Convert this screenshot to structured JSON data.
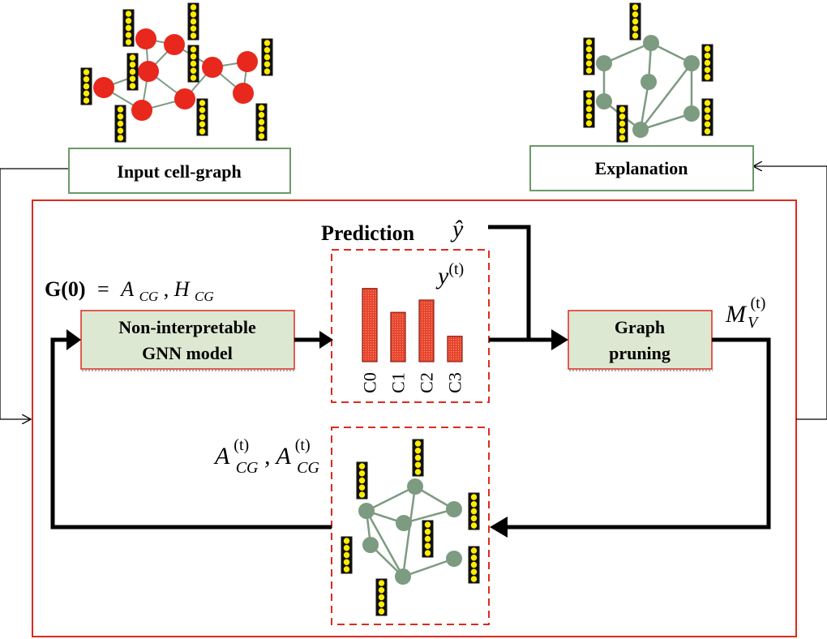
{
  "colors": {
    "frame_border": "#dc2b1e",
    "box_border": "#6a9a68",
    "box_fill": "#dde8d2",
    "node_red": "#e8271d",
    "node_green": "#7c9b80",
    "edge_green": "#7c9b80",
    "bar_fill": "#e8452c",
    "feature_cell": "#ffec00",
    "arrow": "#000000"
  },
  "labels": {
    "input_box": "Input cell-graph",
    "explanation_box": "Explanation",
    "gnn_line1": "Non-interpretable",
    "gnn_line2": "GNN model",
    "pruning_line1": "Graph",
    "pruning_line2": "pruning",
    "prediction": "Prediction",
    "y_hat": "ŷ",
    "g0_bold": "G(0)",
    "g0_rest_eq": "=",
    "g0_a": "A",
    "g0_a_sub": "CG",
    "g0_comma": ",",
    "g0_h": "H",
    "g0_h_sub": "CG",
    "yt_base": "y",
    "yt_sup": "(t)",
    "mv_base": "M",
    "mv_sub": "V",
    "mv_sup": "(t)",
    "acg_base1": "A",
    "acg_sup1": "(t)",
    "acg_sub1": "CG",
    "acg_comma": ",",
    "acg_base2": "A",
    "acg_sup2": "(t)",
    "acg_sub2": "CG"
  },
  "chart_data": {
    "type": "bar",
    "categories": [
      "C0",
      "C1",
      "C2",
      "C3"
    ],
    "values": [
      0.95,
      0.64,
      0.8,
      0.33
    ]
  },
  "icons": {
    "feature_vector": "feature-vector-icon",
    "graph_node": "graph-node-icon"
  }
}
